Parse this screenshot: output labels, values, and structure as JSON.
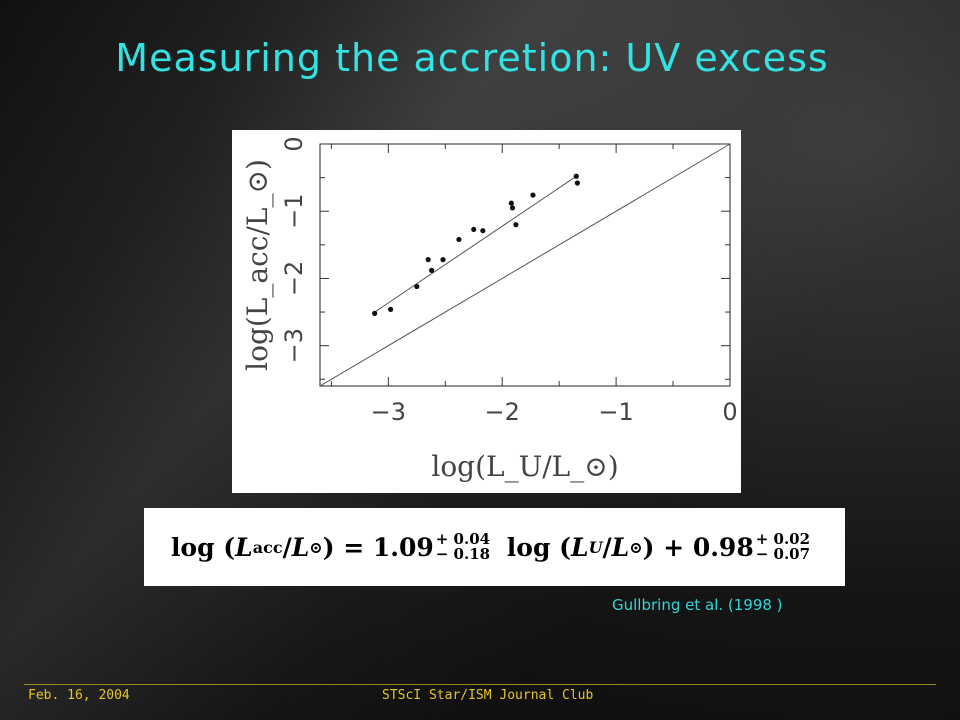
{
  "slide": {
    "title": "Measuring the accretion: UV excess",
    "citation": "Gullbring et al. (1998 )",
    "footer_date": "Feb. 16, 2004",
    "footer_event": "STScI Star/ISM Journal Club",
    "title_color": "#33e3e3",
    "footer_color": "#e6c52a"
  },
  "equation": {
    "lhs_open": "log (",
    "lhs_var": "L",
    "lhs_sub": "acc",
    "lhs_mid": "/",
    "lhs_var2": "L",
    "lhs_sub2": "⊙",
    "lhs_close": ") = 1.09",
    "coef_sup": "+ 0.04",
    "coef_sub": "− 0.18",
    "rhs_open": " log (",
    "rhs_var": "L",
    "rhs_sub": "U",
    "rhs_mid": "/",
    "rhs_var2": "L",
    "rhs_sub2": "⊙",
    "rhs_close": ") + 0.98",
    "const_sup": "+ 0.02",
    "const_sub": "− 0.07"
  },
  "chart_data": {
    "type": "scatter",
    "title": "",
    "xlabel": "log(L_U/L_⊙)",
    "ylabel": "log(L_acc/L_⊙)",
    "xlim": [
      -3.6,
      0
    ],
    "ylim": [
      -3.6,
      0
    ],
    "xticks": [
      -3,
      -2,
      -1,
      0
    ],
    "xtick_labels": [
      "−3",
      "−2",
      "−1",
      "0"
    ],
    "yticks": [
      -3,
      -2,
      -1,
      0
    ],
    "ytick_labels": [
      "−3",
      "−2",
      "−1",
      "0"
    ],
    "grid": false,
    "points": [
      {
        "x": -3.12,
        "y": -2.52
      },
      {
        "x": -2.98,
        "y": -2.46
      },
      {
        "x": -2.75,
        "y": -2.12
      },
      {
        "x": -2.65,
        "y": -1.72
      },
      {
        "x": -2.62,
        "y": -1.88
      },
      {
        "x": -2.52,
        "y": -1.72
      },
      {
        "x": -2.38,
        "y": -1.42
      },
      {
        "x": -2.25,
        "y": -1.27
      },
      {
        "x": -2.17,
        "y": -1.29
      },
      {
        "x": -1.92,
        "y": -0.88
      },
      {
        "x": -1.91,
        "y": -0.95
      },
      {
        "x": -1.88,
        "y": -1.2
      },
      {
        "x": -1.73,
        "y": -0.76
      },
      {
        "x": -1.35,
        "y": -0.48
      },
      {
        "x": -1.34,
        "y": -0.58
      }
    ],
    "lines": [
      {
        "x": [
          -3.12,
          -1.34
        ],
        "y": [
          -2.5,
          -0.47
        ]
      },
      {
        "x": [
          -3.6,
          0
        ],
        "y": [
          -3.6,
          0
        ]
      }
    ]
  }
}
